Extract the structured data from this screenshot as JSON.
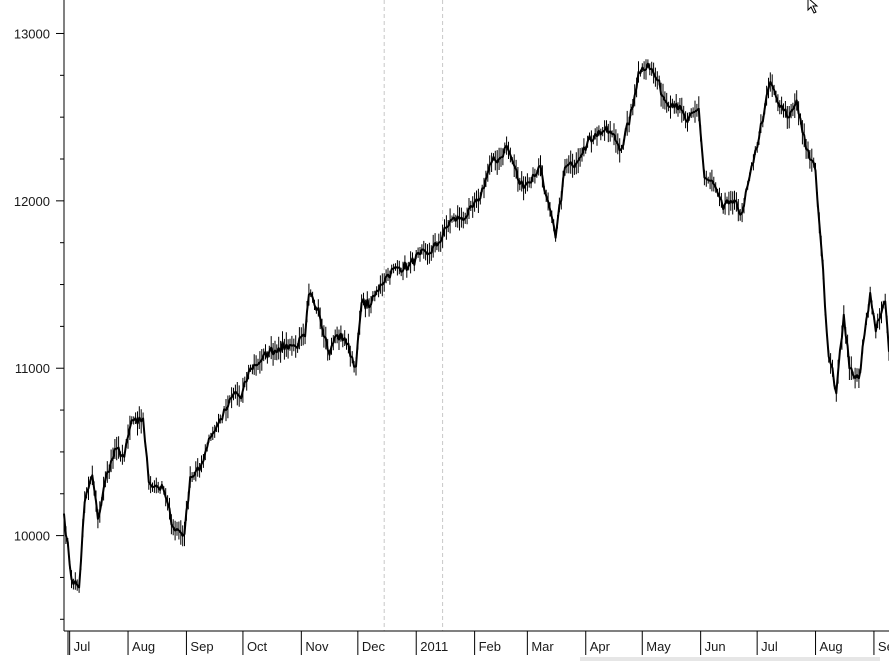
{
  "chart_data": {
    "type": "line",
    "title": "",
    "xlabel": "",
    "ylabel": "",
    "ylim": [
      9430,
      13200
    ],
    "y_ticks": [
      10000,
      11000,
      12000,
      13000
    ],
    "x_tick_labels": [
      "Jul",
      "Aug",
      "Sep",
      "Oct",
      "Nov",
      "Dec",
      "2011",
      "Feb",
      "Mar",
      "Apr",
      "May",
      "Jun",
      "Jul",
      "Aug",
      "Se"
    ],
    "x_range": [
      "2010-06-28",
      "2011-09-09"
    ],
    "x_labels_dates": [
      "2010-07-01",
      "2010-08-01",
      "2010-09-01",
      "2010-10-01",
      "2010-11-01",
      "2010-12-01",
      "2011-01-01",
      "2011-02-01",
      "2011-03-01",
      "2011-04-01",
      "2011-05-01",
      "2011-06-01",
      "2011-07-01",
      "2011-08-01",
      "2011-09-01"
    ],
    "dashed_vertical_lines": [
      "2010-12-15",
      "2011-01-15"
    ],
    "grid": false,
    "legend": "none",
    "line_color": "#000000",
    "series": [
      {
        "x": [
          "2010-06-28",
          "2010-07-02",
          "2010-07-06",
          "2010-07-09",
          "2010-07-13",
          "2010-07-16",
          "2010-07-21",
          "2010-07-26",
          "2010-07-30",
          "2010-08-03",
          "2010-08-06",
          "2010-08-09",
          "2010-08-12",
          "2010-08-16",
          "2010-08-20",
          "2010-08-25",
          "2010-08-31",
          "2010-09-03",
          "2010-09-08",
          "2010-09-13",
          "2010-09-17",
          "2010-09-22",
          "2010-09-27",
          "2010-09-30",
          "2010-10-05",
          "2010-10-11",
          "2010-10-15",
          "2010-10-20",
          "2010-10-26",
          "2010-10-29",
          "2010-11-03",
          "2010-11-05",
          "2010-11-10",
          "2010-11-16",
          "2010-11-19",
          "2010-11-24",
          "2010-11-30",
          "2010-12-03",
          "2010-12-08",
          "2010-12-13",
          "2010-12-17",
          "2010-12-22",
          "2010-12-28",
          "2011-01-03",
          "2011-01-07",
          "2011-01-13",
          "2011-01-19",
          "2011-01-25",
          "2011-01-28",
          "2011-02-03",
          "2011-02-10",
          "2011-02-15",
          "2011-02-18",
          "2011-02-22",
          "2011-02-25",
          "2011-03-02",
          "2011-03-08",
          "2011-03-11",
          "2011-03-16",
          "2011-03-21",
          "2011-03-25",
          "2011-03-31",
          "2011-04-06",
          "2011-04-11",
          "2011-04-15",
          "2011-04-20",
          "2011-04-26",
          "2011-04-29",
          "2011-05-04",
          "2011-05-09",
          "2011-05-13",
          "2011-05-19",
          "2011-05-25",
          "2011-05-31",
          "2011-06-03",
          "2011-06-08",
          "2011-06-13",
          "2011-06-17",
          "2011-06-23",
          "2011-06-29",
          "2011-07-05",
          "2011-07-08",
          "2011-07-13",
          "2011-07-18",
          "2011-07-22",
          "2011-07-27",
          "2011-08-01",
          "2011-08-04",
          "2011-08-08",
          "2011-08-10",
          "2011-08-12",
          "2011-08-16",
          "2011-08-19",
          "2011-08-24",
          "2011-08-30",
          "2011-09-02",
          "2011-09-07",
          "2011-09-09"
        ],
        "y": [
          10130,
          9740,
          9690,
          10200,
          10360,
          10100,
          10380,
          10520,
          10470,
          10690,
          10670,
          10700,
          10320,
          10300,
          10270,
          10050,
          10010,
          10350,
          10390,
          10580,
          10650,
          10750,
          10860,
          10820,
          11000,
          11050,
          11100,
          11120,
          11140,
          11130,
          11190,
          11440,
          11360,
          11080,
          11190,
          11180,
          11010,
          11390,
          11380,
          11500,
          11560,
          11600,
          11610,
          11680,
          11680,
          11750,
          11880,
          11900,
          11910,
          12000,
          12230,
          12260,
          12330,
          12210,
          12100,
          12110,
          12210,
          12030,
          11780,
          12200,
          12210,
          12320,
          12400,
          12420,
          12400,
          12310,
          12560,
          12770,
          12820,
          12720,
          12600,
          12580,
          12470,
          12550,
          12140,
          12100,
          11950,
          12000,
          11930,
          12230,
          12550,
          12710,
          12560,
          12500,
          12600,
          12310,
          12180,
          11730,
          11070,
          11000,
          10850,
          11320,
          11000,
          10940,
          11450,
          11220,
          11400,
          11100
        ]
      }
    ]
  }
}
